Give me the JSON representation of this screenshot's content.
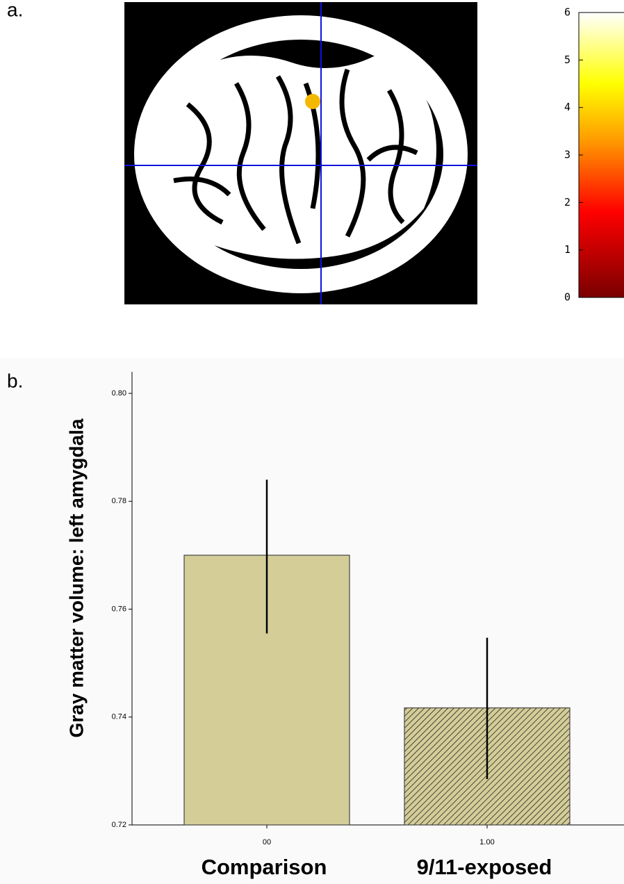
{
  "panel_labels": [
    "a.",
    "b."
  ],
  "chart_data": [
    {
      "type": "colorbar",
      "ylim": [
        0,
        6
      ],
      "yticks": [
        0,
        1,
        2,
        3,
        4,
        5,
        6
      ]
    },
    {
      "type": "bar",
      "ylabel": "Gray matter volume: left amygdala",
      "categories": [
        "Comparison",
        "9/11-exposed"
      ],
      "xtick_labels": [
        "00",
        "1.00"
      ],
      "values": [
        0.77,
        0.7417
      ],
      "error_low": [
        0.7555,
        0.7285
      ],
      "error_high": [
        0.784,
        0.7547
      ],
      "colors": [
        "#d4cd98",
        "#d4cd98"
      ],
      "hatch": [
        false,
        true
      ],
      "ylim": [
        0.72,
        0.804
      ],
      "yticks": [
        {
          "value": 0.72,
          "label": "0.72"
        },
        {
          "value": 0.74,
          "label": "0.74"
        },
        {
          "value": 0.76,
          "label": "0.76"
        },
        {
          "value": 0.78,
          "label": "0.78"
        },
        {
          "value": 0.8,
          "label": "0.80"
        }
      ]
    }
  ]
}
